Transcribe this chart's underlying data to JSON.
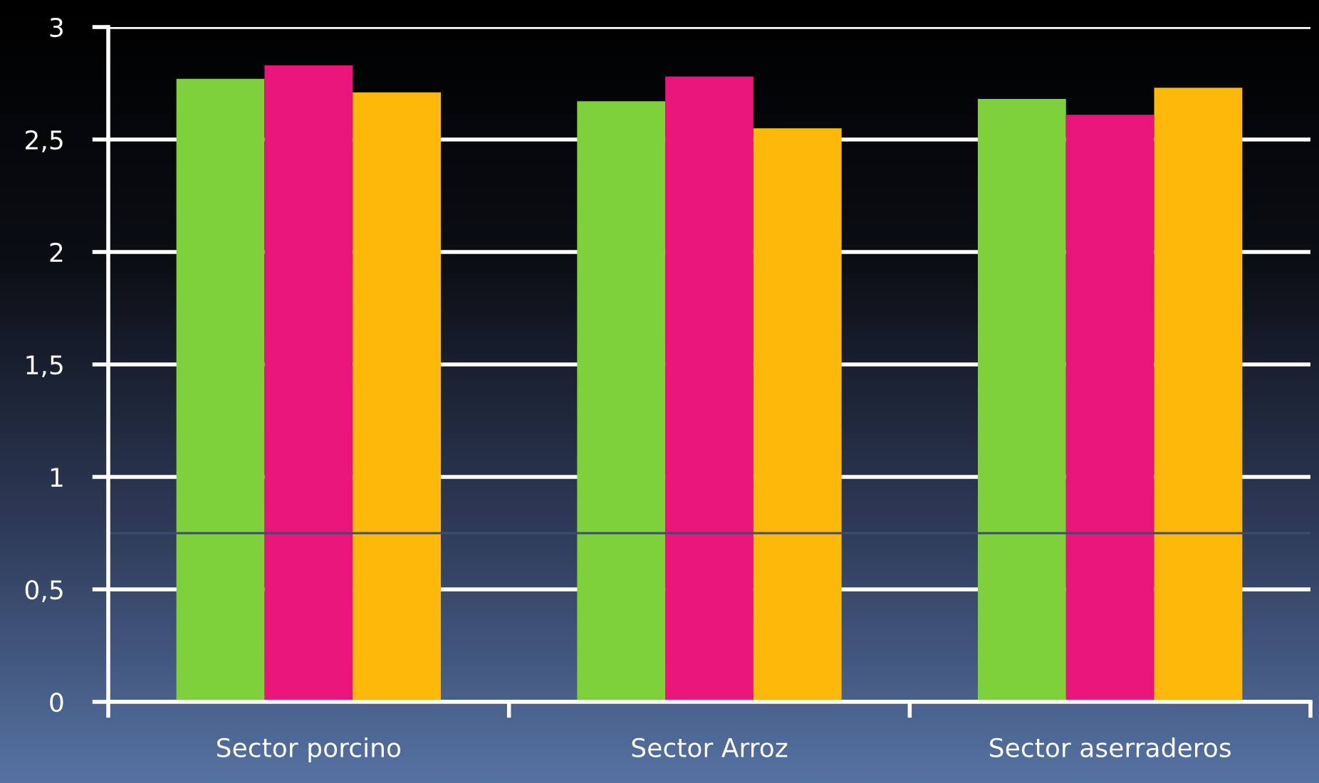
{
  "chart_data": {
    "type": "bar",
    "categories": [
      "Sector porcino",
      "Sector Arroz",
      "Sector aserraderos"
    ],
    "series": [
      {
        "color": "#7fd13b",
        "values": [
          2.77,
          2.67,
          2.68
        ]
      },
      {
        "color": "#ea157a",
        "values": [
          2.83,
          2.78,
          2.61
        ]
      },
      {
        "color": "#feb80a",
        "values": [
          2.71,
          2.55,
          2.73
        ]
      }
    ],
    "ylim": [
      0,
      3
    ],
    "yticks": [
      0,
      {
        "value": 0.5,
        "label": "0,5"
      },
      1,
      {
        "value": 1.5,
        "label": "1,5"
      },
      2,
      {
        "value": 2.5,
        "label": "2,5"
      },
      3
    ],
    "ref_lines": [
      {
        "axis": "y",
        "value": 0.75,
        "color": "#3d4d72"
      }
    ],
    "grid": "y",
    "legend": false
  }
}
